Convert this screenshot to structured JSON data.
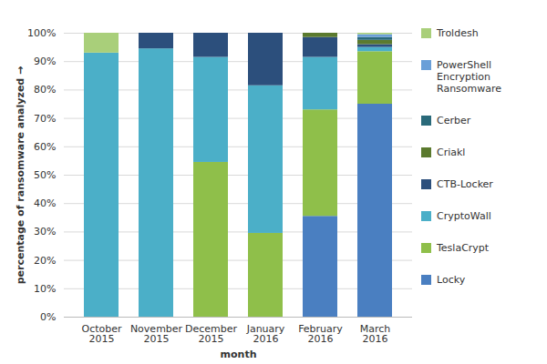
{
  "chart_data": {
    "type": "bar",
    "stacked": true,
    "categories": [
      "October 2015",
      "November 2015",
      "December 2015",
      "January 2016",
      "February 2016",
      "March 2016"
    ],
    "x_label": "month",
    "y_label": "percentage of ransomware analyzed",
    "ylim": [
      0,
      100
    ],
    "yticks": [
      {
        "value": 0,
        "label": "0%"
      },
      {
        "value": 10,
        "label": "10%"
      },
      {
        "value": 20,
        "label": "20%"
      },
      {
        "value": 30,
        "label": "30%"
      },
      {
        "value": 40,
        "label": "40%"
      },
      {
        "value": 50,
        "label": "50%"
      },
      {
        "value": 60,
        "label": "60%"
      },
      {
        "value": 70,
        "label": "70%"
      },
      {
        "value": 80,
        "label": "80%"
      },
      {
        "value": 90,
        "label": "90%"
      },
      {
        "value": 100,
        "label": "100%"
      }
    ],
    "grid": true,
    "legend": "right",
    "series": [
      {
        "name": "Locky",
        "color": "#4a7fc1",
        "values": [
          0,
          0,
          0,
          0,
          35.5,
          75
        ]
      },
      {
        "name": "TeslaCrypt",
        "color": "#8fbf4a",
        "values": [
          0,
          0,
          54.5,
          29.5,
          37.5,
          18.5
        ]
      },
      {
        "name": "CryptoWall",
        "color": "#4bafc8",
        "values": [
          93,
          94.5,
          37,
          52,
          18.5,
          1.5
        ]
      },
      {
        "name": "CTB-Locker",
        "color": "#2c4f7c",
        "values": [
          0,
          5.5,
          8.5,
          18.5,
          7,
          1
        ]
      },
      {
        "name": "Criakl",
        "color": "#5b7a2e",
        "values": [
          0,
          0,
          0,
          0,
          1.5,
          1.5
        ]
      },
      {
        "name": "Cerber",
        "color": "#2a6a7a",
        "values": [
          0,
          0,
          0,
          0,
          0,
          1
        ]
      },
      {
        "name": "PowerShell Encryption Ransomware",
        "color": "#6a9fd8",
        "values": [
          0,
          0,
          0,
          0,
          0,
          1
        ]
      },
      {
        "name": "Troldesh",
        "color": "#a9cf7a",
        "values": [
          7,
          0,
          0,
          0,
          0,
          0.5
        ]
      }
    ]
  }
}
